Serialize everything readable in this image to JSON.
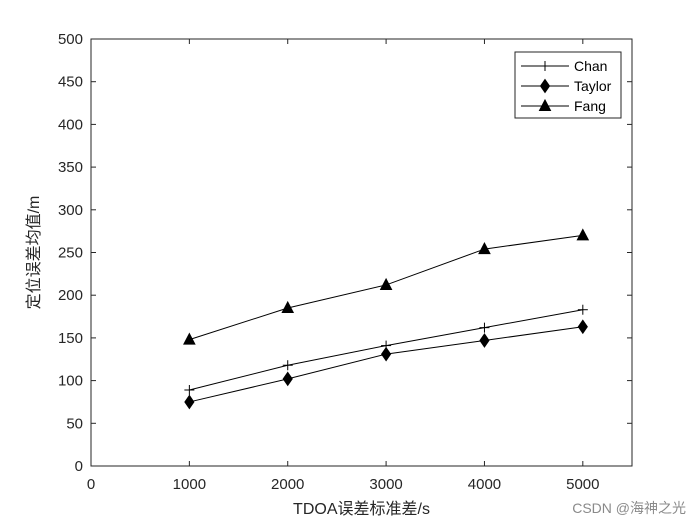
{
  "chart_data": {
    "type": "line",
    "x": [
      1000,
      2000,
      3000,
      4000,
      5000
    ],
    "series": [
      {
        "name": "Chan",
        "marker": "plus",
        "values": [
          89,
          118,
          141,
          162,
          183
        ]
      },
      {
        "name": "Taylor",
        "marker": "diamond",
        "values": [
          75,
          102,
          131,
          147,
          163
        ]
      },
      {
        "name": "Fang",
        "marker": "triangle",
        "values": [
          148,
          185,
          212,
          254,
          270
        ]
      }
    ],
    "xlabel": "TDOA误差标准差/s",
    "ylabel": "定位误差均值/m",
    "xlim": [
      0,
      5500
    ],
    "ylim": [
      0,
      500
    ],
    "xticks": [
      0,
      1000,
      2000,
      3000,
      4000,
      5000
    ],
    "yticks": [
      0,
      50,
      100,
      150,
      200,
      250,
      300,
      350,
      400,
      450,
      500
    ],
    "grid": false,
    "legend_position": "top-right",
    "line_color": "#000000",
    "axis_color": "#262626"
  },
  "watermark": "CSDN @海神之光"
}
